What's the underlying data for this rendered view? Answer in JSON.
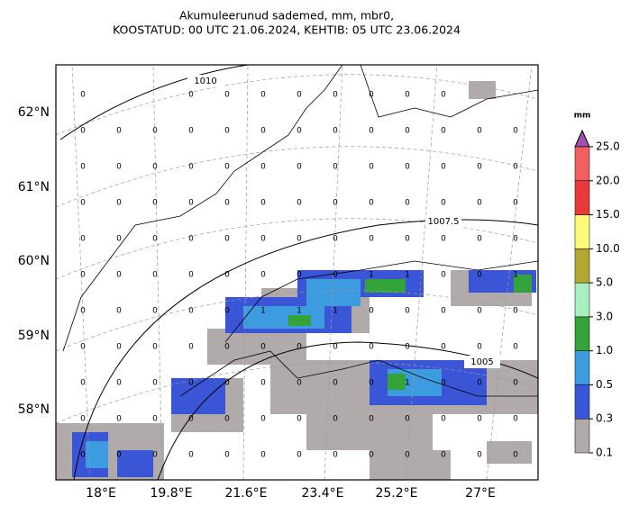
{
  "title_lines": [
    "Akumuleerunud sademed, mm, mbr0,",
    "KOOSTATUD: 00 UTC 21.06.2024, KEHTIB: 05 UTC 23.06.2024"
  ],
  "lat_labels": [
    "62°N",
    "61°N",
    "60°N",
    "59°N",
    "58°N"
  ],
  "lon_labels": [
    "18°E",
    "19.8°E",
    "21.6°E",
    "23.4°E",
    "25.2°E",
    "27°E"
  ],
  "isobar_labels": [
    "1010",
    "1007.5",
    "1005"
  ],
  "point_values": [
    [
      0,
      null,
      null,
      0,
      0,
      0,
      0,
      0,
      0,
      0,
      0,
      null,
      null
    ],
    [
      0,
      0,
      0,
      0,
      0,
      0,
      0,
      0,
      0,
      0,
      0,
      0,
      0
    ],
    [
      0,
      0,
      0,
      0,
      0,
      0,
      0,
      0,
      0,
      0,
      0,
      0,
      0
    ],
    [
      0,
      0,
      0,
      0,
      0,
      0,
      0,
      0,
      0,
      0,
      0,
      0,
      0
    ],
    [
      0,
      0,
      0,
      0,
      0,
      0,
      0,
      0,
      0,
      0,
      0,
      0,
      0
    ],
    [
      0,
      0,
      0,
      0,
      0,
      0,
      0,
      0,
      1,
      1,
      0,
      0,
      1
    ],
    [
      0,
      0,
      0,
      0,
      0,
      1,
      1,
      1,
      0,
      0,
      0,
      0,
      0
    ],
    [
      0,
      0,
      0,
      0,
      0,
      0,
      0,
      0,
      0,
      0,
      0,
      0,
      0
    ],
    [
      0,
      0,
      0,
      0,
      0,
      0,
      0,
      0,
      0,
      1,
      0,
      0,
      0
    ],
    [
      0,
      0,
      0,
      0,
      0,
      0,
      0,
      0,
      0,
      0,
      0,
      0,
      0
    ],
    [
      0,
      0,
      0,
      0,
      0,
      0,
      0,
      0,
      0,
      0,
      0,
      0,
      0
    ]
  ],
  "colorbar": {
    "unit": "mm",
    "levels": [
      {
        "value": 0.1,
        "label": "0.1"
      },
      {
        "value": 0.3,
        "label": "0.3"
      },
      {
        "value": 0.5,
        "label": "0.5"
      },
      {
        "value": 1,
        "label": "1.0"
      },
      {
        "value": 3,
        "label": "3.0"
      },
      {
        "value": 5,
        "label": "5.0"
      },
      {
        "value": 10,
        "label": "10.0"
      },
      {
        "value": 15,
        "label": "15.0"
      },
      {
        "value": 20,
        "label": "20.0"
      },
      {
        "value": 25,
        "label": "25.0"
      }
    ],
    "colors": [
      "#b0aaaa",
      "#3a55d6",
      "#3d9be0",
      "#34a33a",
      "#a8f0c0",
      "#b5a832",
      "#fafa78",
      "#e83a3a",
      "#f06060"
    ],
    "extend_color": "#a050b0"
  }
}
